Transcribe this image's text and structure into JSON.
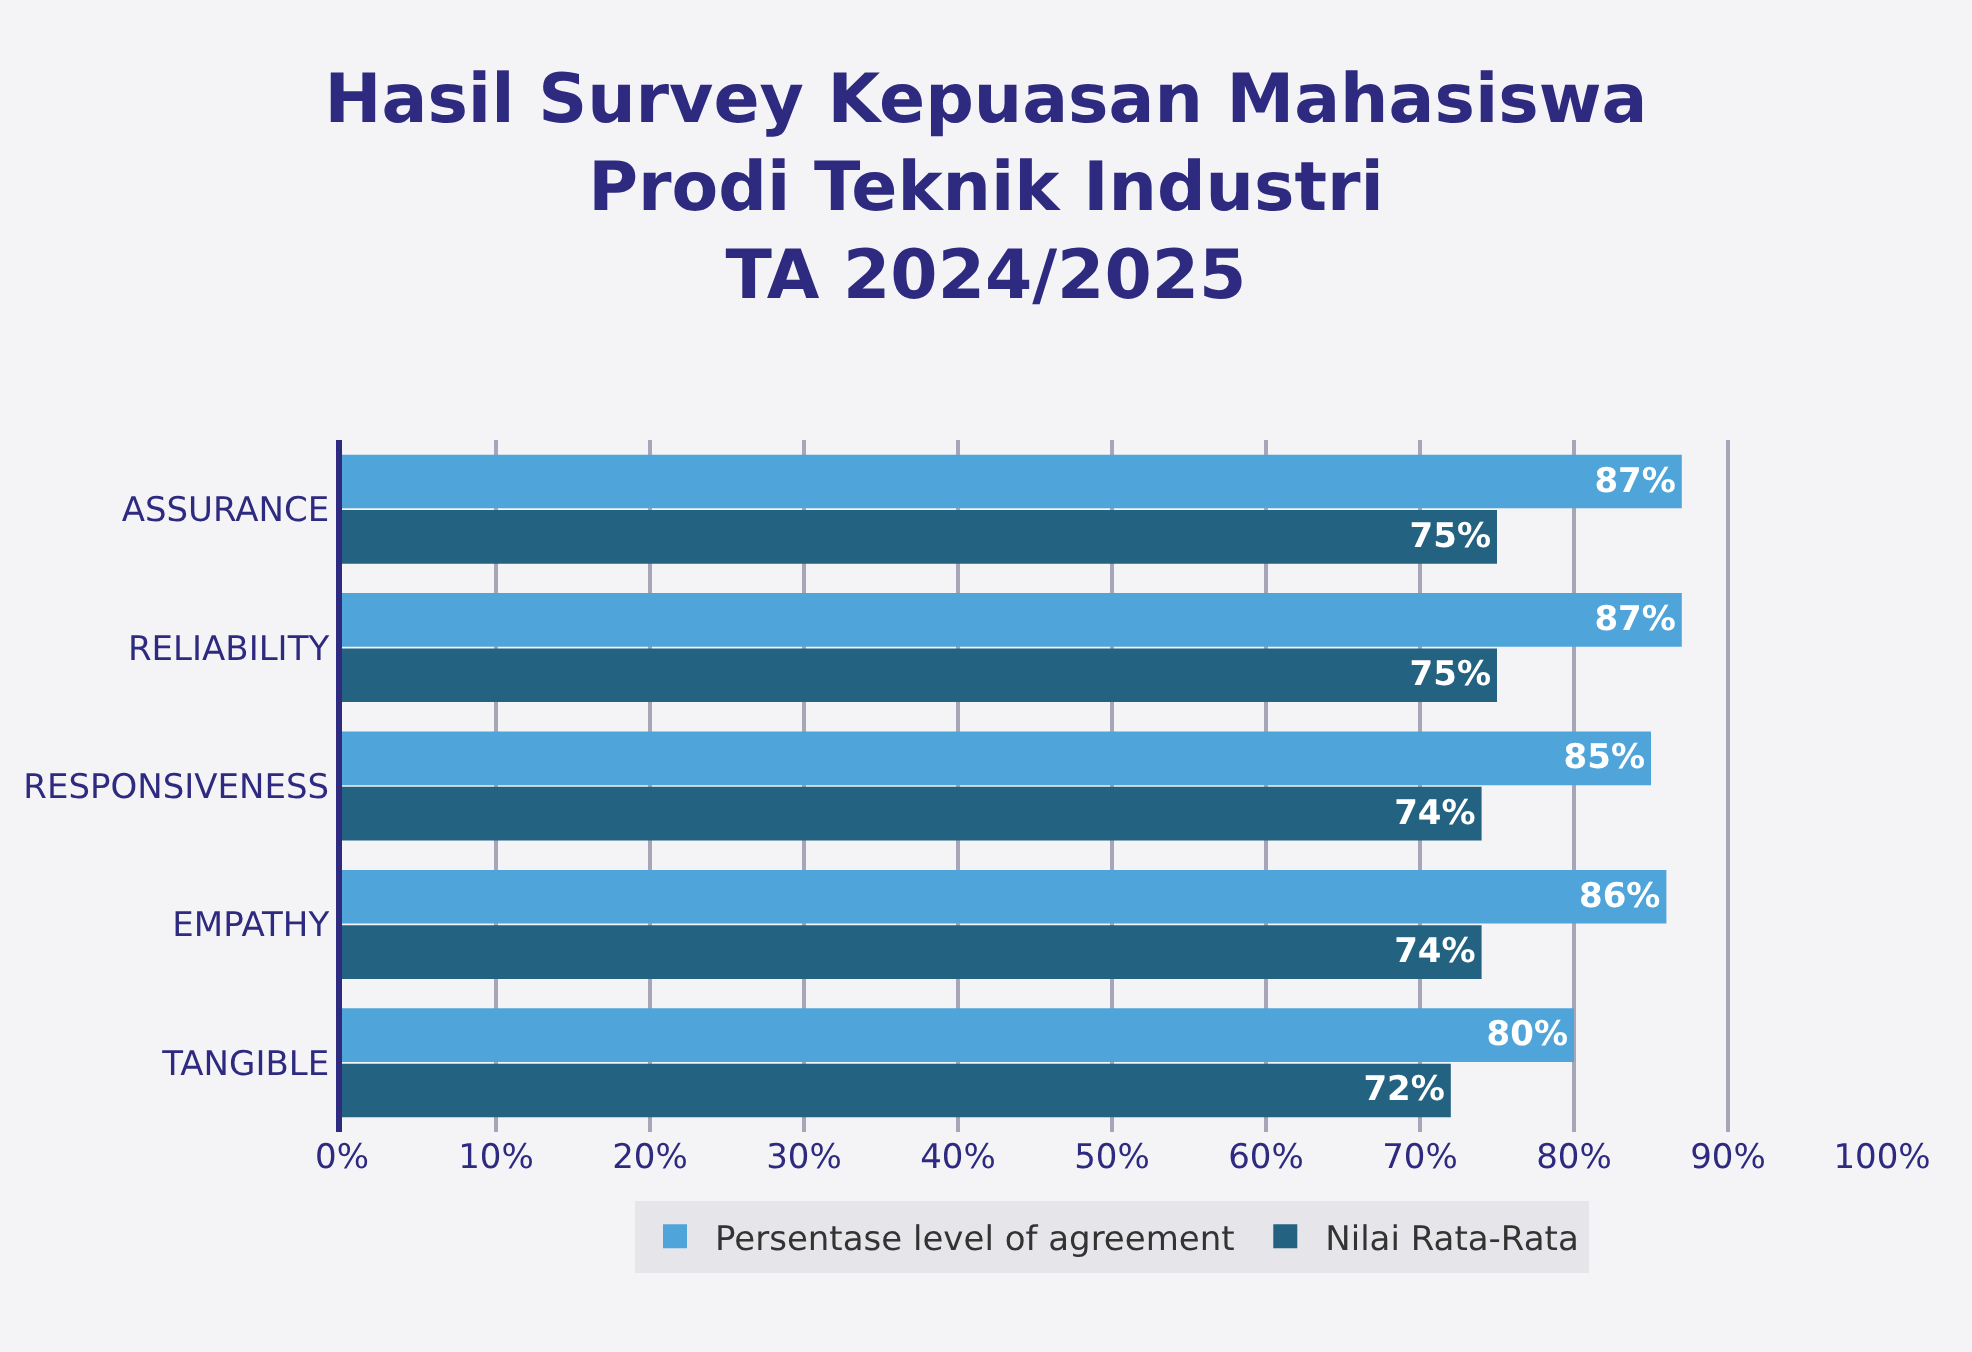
{
  "chart_data": {
    "type": "bar",
    "orientation": "horizontal",
    "title": "Hasil Survey Kepuasan Mahasiswa\nProdi Teknik Industri\nTA 2024/2025",
    "categories": [
      "ASSURANCE",
      "RELIABILITY",
      "RESPONSIVENESS",
      "EMPATHY",
      "TANGIBLE"
    ],
    "series": [
      {
        "name": "Persentase level of agreement",
        "color": "#4fa5da",
        "values": [
          87,
          87,
          85,
          86,
          80
        ],
        "value_labels": [
          "87%",
          "87%",
          "85%",
          "86%",
          "80%"
        ]
      },
      {
        "name": "Nilai Rata-Rata",
        "color": "#236280",
        "values": [
          75,
          75,
          74,
          74,
          72
        ],
        "value_labels": [
          "75%",
          "75%",
          "74%",
          "74%",
          "72%"
        ]
      }
    ],
    "xlim": [
      0,
      100
    ],
    "xticks": [
      {
        "value": 0,
        "label": "0%"
      },
      {
        "value": 10,
        "label": "10%"
      },
      {
        "value": 20,
        "label": "20%"
      },
      {
        "value": 30,
        "label": "30%"
      },
      {
        "value": 40,
        "label": "40%"
      },
      {
        "value": 50,
        "label": "50%"
      },
      {
        "value": 60,
        "label": "60%"
      },
      {
        "value": 70,
        "label": "70%"
      },
      {
        "value": 80,
        "label": "80%"
      },
      {
        "value": 90,
        "label": "90%"
      },
      {
        "value": 100,
        "label": "100%"
      }
    ],
    "grid": "x",
    "legend": "bottom"
  }
}
